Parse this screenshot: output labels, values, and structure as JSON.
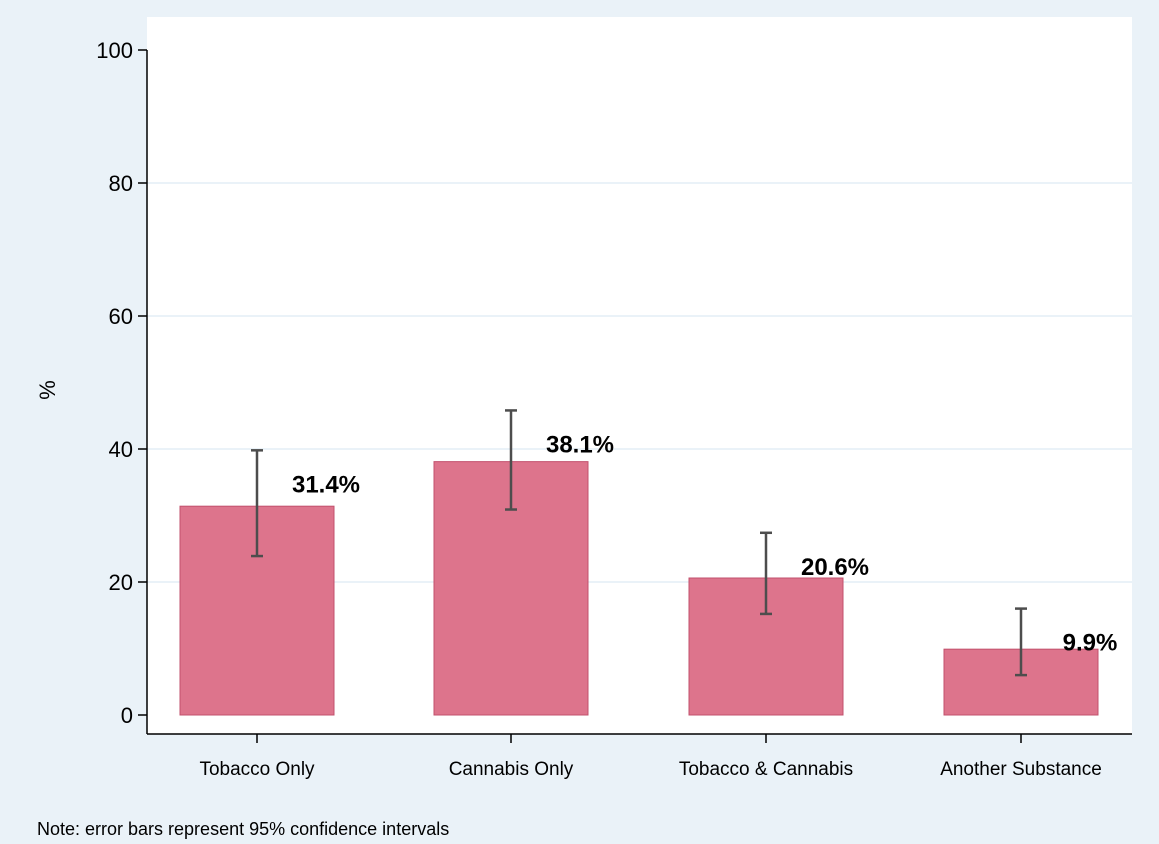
{
  "chart_data": {
    "type": "bar",
    "categories": [
      "Tobacco Only",
      "Cannabis Only",
      "Tobacco & Cannabis",
      "Another Substance"
    ],
    "values": [
      31.4,
      38.1,
      20.6,
      9.9
    ],
    "value_labels": [
      "31.4%",
      "38.1%",
      "20.6%",
      "9.9%"
    ],
    "error_bars": [
      {
        "low": 23.9,
        "high": 39.8
      },
      {
        "low": 30.9,
        "high": 45.8
      },
      {
        "low": 15.2,
        "high": 27.4
      },
      {
        "low": 6.0,
        "high": 16.0
      }
    ],
    "ylabel": "%",
    "xlabel": "",
    "ylim": [
      0,
      100
    ],
    "yticks": [
      0,
      20,
      40,
      60,
      80,
      100
    ],
    "grid": true,
    "legend": "none",
    "colors": {
      "bar": "#dd748c",
      "bar_edge": "#c2506c",
      "error_bar": "#4d4d4d",
      "grid": "#eaf2f8",
      "background": "#eaf2f8",
      "plot_background": "#ffffff"
    }
  },
  "note": "Note: error bars represent 95% confidence intervals"
}
